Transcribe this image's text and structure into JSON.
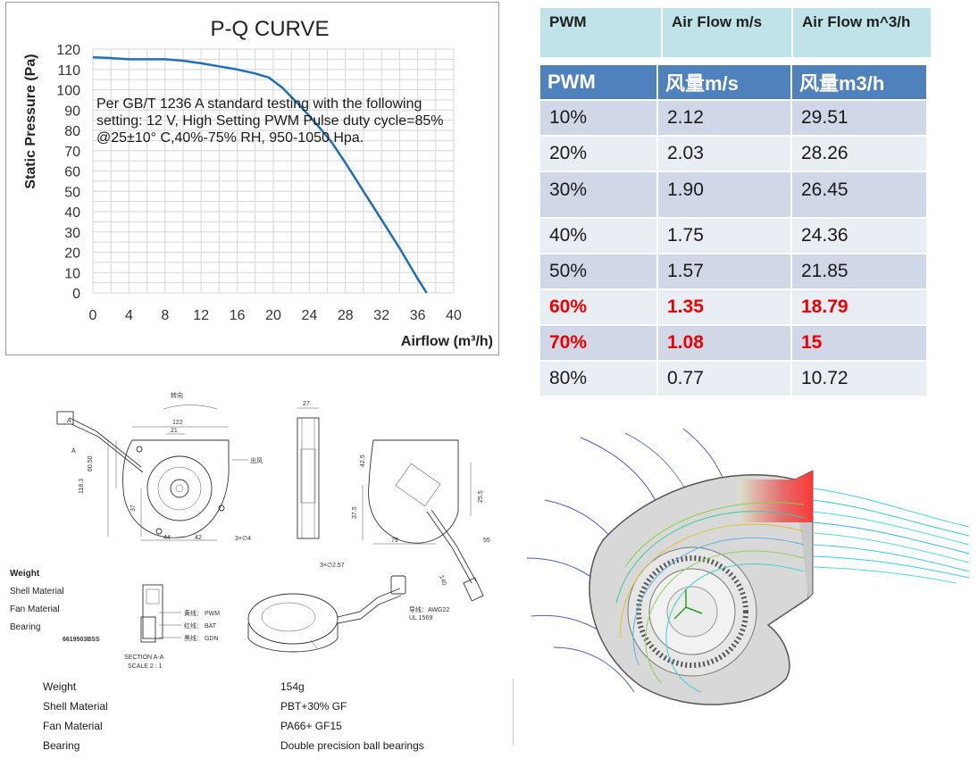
{
  "chart_data": {
    "type": "line",
    "title": "P-Q CURVE",
    "xlabel": "Airflow (m³/h)",
    "ylabel": "Static Pressure (Pa)",
    "xlim": [
      0,
      40
    ],
    "ylim": [
      0,
      120
    ],
    "xticks": [
      "0",
      "4",
      "8",
      "12",
      "16",
      "20",
      "24",
      "28",
      "32",
      "36",
      "40"
    ],
    "yticks": [
      "0",
      "10",
      "20",
      "30",
      "40",
      "50",
      "60",
      "70",
      "80",
      "90",
      "100",
      "110",
      "120"
    ],
    "grid": true,
    "line_color": "#1f6fb8",
    "series": [
      {
        "x": [
          0,
          2,
          4,
          6,
          8,
          10,
          12,
          14,
          16,
          18,
          19.5,
          21,
          23,
          25,
          26.5,
          28,
          30,
          32,
          34,
          36,
          37
        ],
        "y": [
          116,
          115.6,
          115,
          115,
          115,
          114.3,
          113,
          111.5,
          110,
          108,
          106,
          101,
          92,
          82,
          74,
          64,
          50,
          36,
          22,
          7,
          0
        ]
      }
    ],
    "annotation": "Per GB/T 1236 A standard testing with the following setting: 12 V, High Setting   PWM Pulse duty cycle=85%  @25±10° C,40%-75% RH, 950-1050 Hpa."
  },
  "top_table": {
    "headers": [
      "PWM",
      "Air Flow m/s",
      "Air Flow m^3/h"
    ]
  },
  "pwm_table": {
    "headers": [
      "PWM",
      "风量m/s",
      "风量m3/h"
    ],
    "highlight_color": "#ee0000",
    "rows": [
      {
        "pwm": "10%",
        "ms": "2.12",
        "m3h": "29.51",
        "hl": false
      },
      {
        "pwm": "20%",
        "ms": "2.03",
        "m3h": "28.26",
        "hl": false
      },
      {
        "pwm": "30%",
        "ms": "1.90",
        "m3h": "26.45",
        "hl": false
      },
      {
        "pwm": "40%",
        "ms": "1.75",
        "m3h": "24.36",
        "hl": false
      },
      {
        "pwm": "50%",
        "ms": "1.57",
        "m3h": "21.85",
        "hl": false
      },
      {
        "pwm": "60%",
        "ms": "1.35",
        "m3h": "18.79",
        "hl": true
      },
      {
        "pwm": "70%",
        "ms": "1.08",
        "m3h": "15",
        "hl": true
      },
      {
        "pwm": "80%",
        "ms": "0.77",
        "m3h": "10.72",
        "hl": false
      }
    ]
  },
  "drawing": {
    "rotation_label": "转向",
    "outlet_label": "出风",
    "dims": {
      "d122": "122",
      "d21": "21",
      "d6050": "60.50",
      "d1183": "118.3",
      "d37": "37",
      "d44": "44",
      "d42": "42",
      "d3phi4": "3×∅4",
      "d27": "27",
      "d425": "42.5",
      "d375": "37.5",
      "d255": "25.5",
      "d79": "79",
      "d55": "55",
      "d3phi257": "3×∅2.57",
      "d140": "140"
    },
    "section_letter": "A",
    "wires": [
      "黄线： PWM",
      "红线： BAT",
      "黑线： GDN"
    ],
    "wire_spec_1": "导线：AWG22",
    "wire_spec_2": "UL 1569",
    "part_number": "6619503BSS",
    "section_title": "SECTION A-A",
    "section_scale": "SCALE 2 : 1",
    "side_labels": [
      "Weight",
      "Shell Material",
      "Fan Material",
      "Bearing"
    ]
  },
  "specs": [
    {
      "key": "Weight",
      "value": "154g"
    },
    {
      "key": "Shell Material",
      "value": "PBT+30% GF"
    },
    {
      "key": "Fan Material",
      "value": "PA66+ GF15"
    },
    {
      "key": "Bearing",
      "value": "Double precision ball bearings"
    }
  ]
}
